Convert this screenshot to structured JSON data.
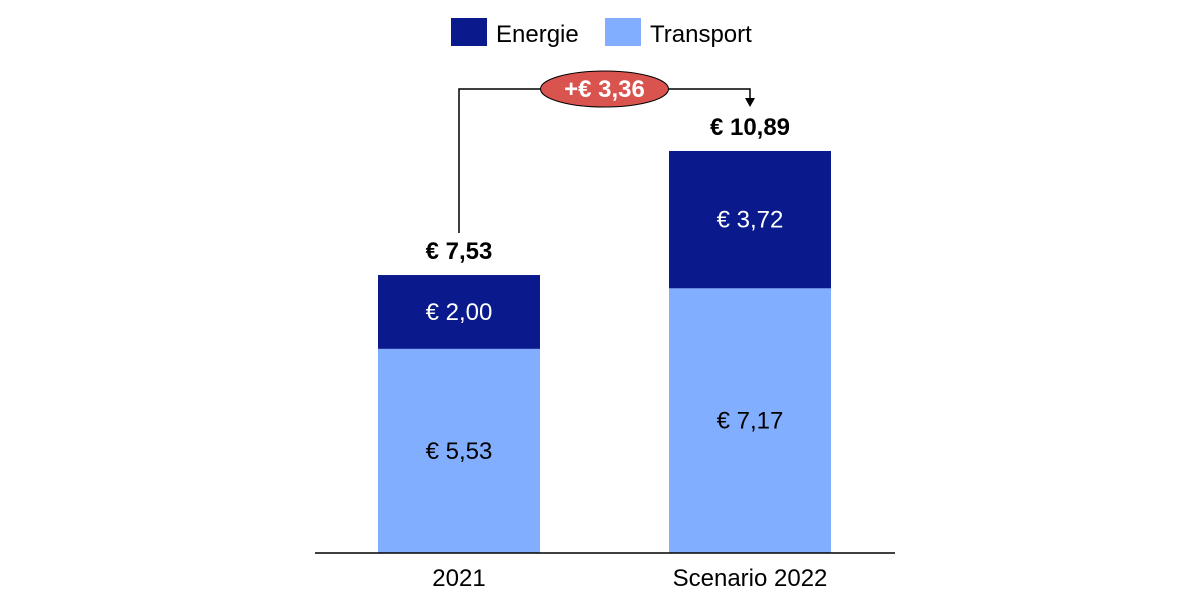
{
  "chart_data": {
    "type": "bar",
    "stacked": true,
    "categories": [
      "2021",
      "Scenario 2022"
    ],
    "series": [
      {
        "name": "Transport",
        "values": [
          5.53,
          7.17
        ],
        "labels": [
          "€ 5,53",
          "€ 7,17"
        ],
        "color": "#82AEFF",
        "label_color": "#000000"
      },
      {
        "name": "Energie",
        "values": [
          2.0,
          3.72
        ],
        "labels": [
          "€ 2,00",
          "€ 3,72"
        ],
        "color": "#0A1A8C",
        "label_color": "#ffffff"
      }
    ],
    "totals": [
      7.53,
      10.89
    ],
    "total_labels": [
      "€ 7,53",
      "€ 10,89"
    ],
    "difference": {
      "value": 3.36,
      "label": "+€ 3,36",
      "color": "#D9534F"
    },
    "legend": {
      "placement": "top-center",
      "entries": [
        "Energie",
        "Transport"
      ]
    },
    "ylim": [
      0,
      12
    ],
    "grid": false,
    "title": "",
    "xlabel": "",
    "ylabel": ""
  }
}
